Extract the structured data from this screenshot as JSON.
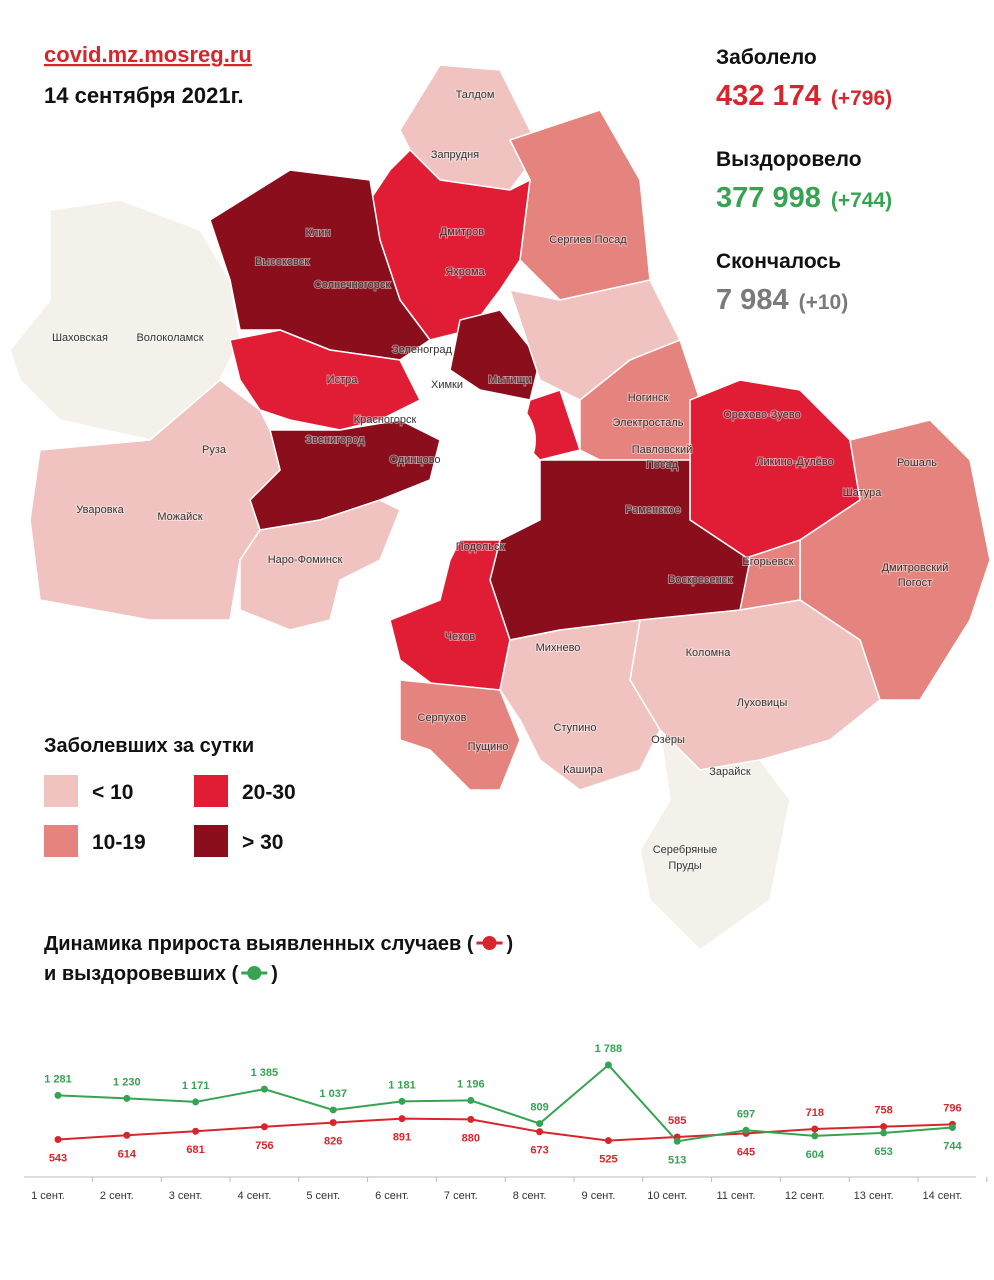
{
  "header": {
    "site": "covid.mz.mosreg.ru",
    "date": "14 сентября 2021г."
  },
  "stats": [
    {
      "label": "Заболело",
      "value": "432 174",
      "delta": "(+796)"
    },
    {
      "label": "Выздоровело",
      "value": "377 998",
      "delta": "(+744)"
    },
    {
      "label": "Скончалось",
      "value": "7 984",
      "delta": "(+10)"
    }
  ],
  "map": {
    "labels": [
      "Талдом",
      "Запрудня",
      "Дмитров",
      "Яхрома",
      "Сергиев Посад",
      "Клин",
      "Высоковск",
      "Солнечногорск",
      "Шаховская",
      "Волоколамск",
      "Зеленоград",
      "Истра",
      "Химки",
      "Мытищи",
      "Ногинск",
      "Электросталь",
      "Красногорск",
      "Звенигород",
      "Одинцово",
      "Руза",
      "Павловский",
      "Посад",
      "Орехово-Зуево",
      "Ликино-Дулёво",
      "Рошаль",
      "Шатура",
      "Уваровка",
      "Можайск",
      "Раменское",
      "Наро-Фоминск",
      "Подольск",
      "Егорьевск",
      "Дмитровский",
      "Погост",
      "Воскресенск",
      "Михнево",
      "Чехов",
      "Коломна",
      "Луховицы",
      "Серпухов",
      "Пущино",
      "Ступино",
      "Озёры",
      "Кашира",
      "Зарайск",
      "Серебряные",
      "Пруды"
    ],
    "legend": {
      "title": "Заболевших за сутки",
      "items": [
        {
          "label": "< 10",
          "color": "#f0c3c0"
        },
        {
          "label": "10-19",
          "color": "#e5837e"
        },
        {
          "label": "20-30",
          "color": "#e01d35"
        },
        {
          "label": "> 30",
          "color": "#8a0e1c"
        }
      ]
    }
  },
  "chart_data": {
    "type": "line",
    "title_lines": [
      [
        "Динамика прироста выявленных случаев (",
        ")"
      ],
      [
        "и выздоровевших (",
        ")"
      ]
    ],
    "categories": [
      "1 сент.",
      "2 сент.",
      "3 сент.",
      "4 сент.",
      "5 сент.",
      "6 сент.",
      "7 сент.",
      "8 сент.",
      "9 сент.",
      "10 сент.",
      "11 сент.",
      "12 сент.",
      "13 сент.",
      "14 сент."
    ],
    "series": [
      {
        "color": "#d7262b",
        "values": [
          543,
          614,
          681,
          756,
          826,
          891,
          880,
          673,
          525,
          585,
          645,
          718,
          758,
          796
        ]
      },
      {
        "color": "#35a352",
        "values": [
          1281,
          1230,
          1171,
          1385,
          1037,
          1181,
          1196,
          809,
          1788,
          513,
          697,
          604,
          653,
          744
        ],
        "value_labels": [
          "1 281",
          "1 230",
          "1 171",
          "1 385",
          "1 037",
          "1 181",
          "1 196",
          "809",
          "1 788",
          "513",
          "697",
          "604",
          "653",
          "744"
        ]
      }
    ]
  }
}
